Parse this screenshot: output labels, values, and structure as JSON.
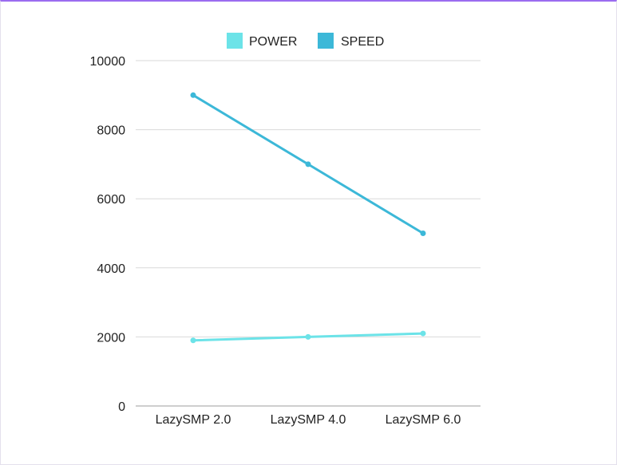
{
  "chart_data": {
    "type": "line",
    "title": "",
    "xlabel": "",
    "ylabel": "",
    "categories": [
      "LazySMP 2.0",
      "LazySMP 4.0",
      "LazySMP 6.0"
    ],
    "ylim": [
      0,
      10000
    ],
    "yticks": [
      0,
      2000,
      4000,
      6000,
      8000,
      10000
    ],
    "grid": true,
    "legend": "top-center",
    "series": [
      {
        "name": "POWER",
        "color": "#6ce3e8",
        "values": [
          1900,
          2000,
          2100
        ]
      },
      {
        "name": "SPEED",
        "color": "#3cb8d8",
        "values": [
          9000,
          7000,
          5000
        ]
      }
    ]
  }
}
